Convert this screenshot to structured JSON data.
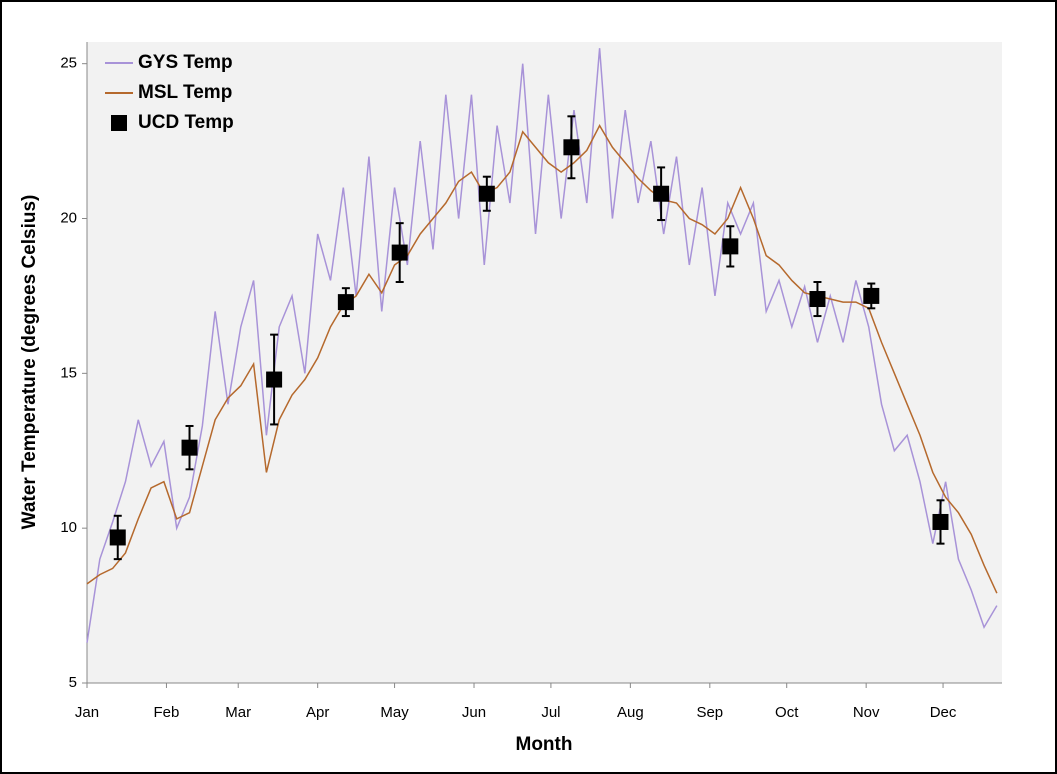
{
  "chart_data": {
    "type": "line",
    "x_label": "Month",
    "y_label": "Water Temperature (degrees Celsius)",
    "xlim": [
      0,
      357
    ],
    "xticks": [
      {
        "value": 0,
        "label": "Jan"
      },
      {
        "value": 31,
        "label": "Feb"
      },
      {
        "value": 59,
        "label": "Mar"
      },
      {
        "value": 90,
        "label": "Apr"
      },
      {
        "value": 120,
        "label": "May"
      },
      {
        "value": 151,
        "label": "Jun"
      },
      {
        "value": 181,
        "label": "Jul"
      },
      {
        "value": 212,
        "label": "Aug"
      },
      {
        "value": 243,
        "label": "Sep"
      },
      {
        "value": 273,
        "label": "Oct"
      },
      {
        "value": 304,
        "label": "Nov"
      },
      {
        "value": 334,
        "label": "Dec"
      }
    ],
    "ylim": [
      5,
      25.7
    ],
    "yticks": [
      5,
      10,
      15,
      20,
      25
    ],
    "legend": "upper-left",
    "series": [
      {
        "name": "GYS Temp",
        "color": "#a893d8",
        "style": "line",
        "x": [
          0,
          5,
          10,
          15,
          20,
          25,
          30,
          35,
          40,
          45,
          50,
          55,
          60,
          65,
          70,
          75,
          80,
          85,
          90,
          95,
          100,
          105,
          110,
          115,
          120,
          125,
          130,
          135,
          140,
          145,
          150,
          155,
          160,
          165,
          170,
          175,
          180,
          185,
          190,
          195,
          200,
          205,
          210,
          215,
          220,
          225,
          230,
          235,
          240,
          245,
          250,
          255,
          260,
          265,
          270,
          275,
          280,
          285,
          290,
          295,
          300,
          305,
          310,
          315,
          320,
          325,
          330,
          335,
          340,
          345,
          350,
          355
        ],
        "values": [
          6.3,
          9.0,
          10.2,
          11.5,
          13.5,
          12.0,
          12.8,
          10.0,
          11.0,
          13.3,
          17.0,
          14.0,
          16.5,
          18.0,
          13.0,
          16.5,
          17.5,
          15.0,
          19.5,
          18.0,
          21.0,
          17.5,
          22.0,
          17.0,
          21.0,
          18.5,
          22.5,
          19.0,
          24.0,
          20.0,
          24.0,
          18.5,
          23.0,
          20.5,
          25.0,
          19.5,
          24.0,
          20.0,
          23.5,
          20.5,
          25.5,
          20.0,
          23.5,
          20.5,
          22.5,
          19.5,
          22.0,
          18.5,
          21.0,
          17.5,
          20.5,
          19.5,
          20.5,
          17.0,
          18.0,
          16.5,
          17.8,
          16.0,
          17.5,
          16.0,
          18.0,
          16.5,
          14.0,
          12.5,
          13.0,
          11.5,
          9.5,
          11.5,
          9.0,
          8.0,
          6.8,
          7.5
        ]
      },
      {
        "name": "MSL Temp",
        "color": "#b5692d",
        "style": "line",
        "x": [
          0,
          5,
          10,
          15,
          20,
          25,
          30,
          35,
          40,
          45,
          50,
          55,
          60,
          65,
          70,
          75,
          80,
          85,
          90,
          95,
          100,
          105,
          110,
          115,
          120,
          125,
          130,
          135,
          140,
          145,
          150,
          155,
          160,
          165,
          170,
          175,
          180,
          185,
          190,
          195,
          200,
          205,
          210,
          215,
          220,
          225,
          230,
          235,
          240,
          245,
          250,
          255,
          260,
          265,
          270,
          275,
          280,
          285,
          290,
          295,
          300,
          305,
          310,
          315,
          320,
          325,
          330,
          335,
          340,
          345,
          350,
          355
        ],
        "values": [
          8.2,
          8.5,
          8.7,
          9.2,
          10.3,
          11.3,
          11.5,
          10.3,
          10.5,
          12.0,
          13.5,
          14.2,
          14.6,
          15.3,
          11.8,
          13.5,
          14.3,
          14.8,
          15.5,
          16.5,
          17.2,
          17.5,
          18.2,
          17.6,
          18.5,
          18.8,
          19.5,
          20.0,
          20.5,
          21.2,
          21.5,
          20.8,
          21.0,
          21.5,
          22.8,
          22.3,
          21.8,
          21.5,
          21.8,
          22.2,
          23.0,
          22.3,
          21.8,
          21.3,
          20.9,
          20.6,
          20.5,
          20.0,
          19.8,
          19.5,
          20.0,
          21.0,
          20.0,
          18.8,
          18.5,
          18.0,
          17.6,
          17.5,
          17.4,
          17.3,
          17.3,
          17.1,
          16.0,
          15.0,
          14.0,
          13.0,
          11.8,
          11.0,
          10.5,
          9.8,
          8.8,
          7.9
        ]
      },
      {
        "name": "UCD Temp",
        "color": "#000000",
        "style": "marker",
        "x": [
          12,
          40,
          73,
          101,
          122,
          156,
          189,
          224,
          251,
          285,
          306,
          333
        ],
        "values": [
          9.7,
          12.6,
          14.8,
          17.3,
          18.9,
          20.8,
          22.3,
          20.8,
          19.1,
          17.4,
          17.5,
          10.2
        ],
        "errors": [
          0.7,
          0.7,
          1.45,
          0.45,
          0.95,
          0.55,
          1.0,
          0.85,
          0.65,
          0.55,
          0.4,
          0.7
        ]
      }
    ]
  }
}
